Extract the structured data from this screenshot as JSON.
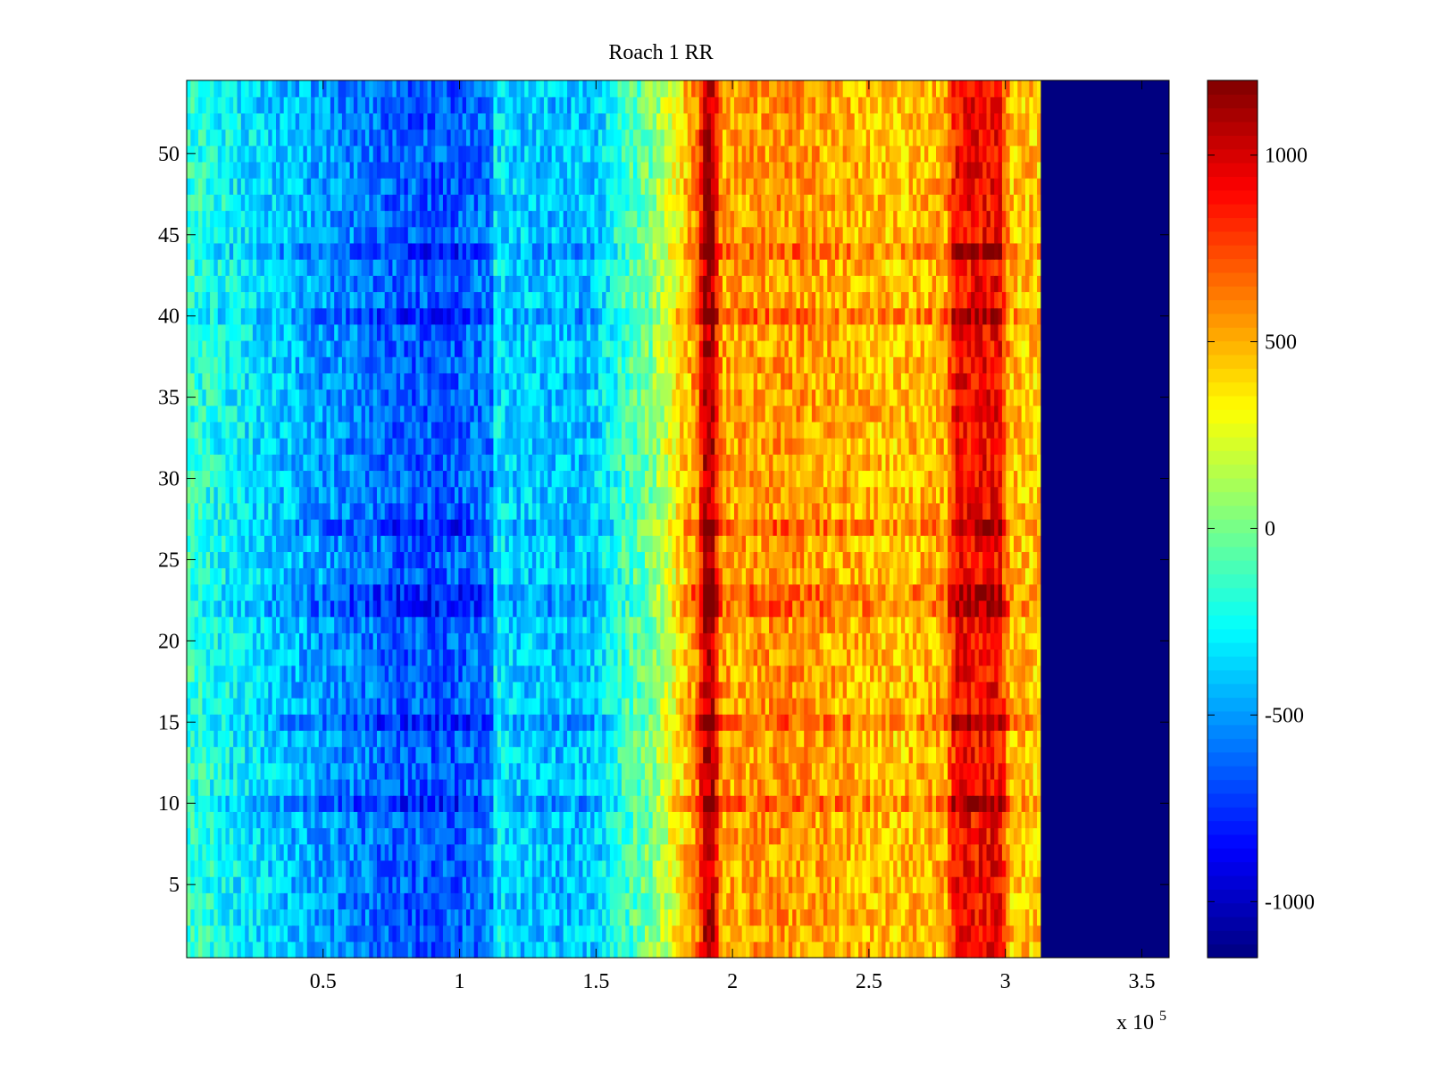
{
  "chart_data": {
    "type": "heatmap",
    "title": "Roach 1 RR",
    "xlabel": "",
    "ylabel": "",
    "x_multiplier_label": {
      "base": "x 10",
      "exponent": "5"
    },
    "xlim": [
      0,
      3.6
    ],
    "ylim": [
      0.5,
      54.5
    ],
    "x_ticks": [
      0.5,
      1,
      1.5,
      2,
      2.5,
      3,
      3.5
    ],
    "x_tick_labels": [
      "0.5",
      "1",
      "1.5",
      "2",
      "2.5",
      "3",
      "3.5"
    ],
    "y_ticks": [
      5,
      10,
      15,
      20,
      25,
      30,
      35,
      40,
      45,
      50
    ],
    "y_tick_labels": [
      "5",
      "10",
      "15",
      "20",
      "25",
      "30",
      "35",
      "40",
      "45",
      "50"
    ],
    "rows": 54,
    "data_x_end": 3.13,
    "colormap": "jet",
    "colorbar": {
      "clim": [
        -1150,
        1200
      ],
      "ticks": [
        -1000,
        -500,
        0,
        500,
        1000
      ],
      "tick_labels": [
        "-1000",
        "-500",
        "0",
        "500",
        "1000"
      ],
      "location": "right"
    },
    "value_profile": [
      {
        "x": 0.0,
        "v": -150
      },
      {
        "x": 0.2,
        "v": -300
      },
      {
        "x": 0.5,
        "v": -500
      },
      {
        "x": 0.8,
        "v": -640
      },
      {
        "x": 1.0,
        "v": -640
      },
      {
        "x": 1.12,
        "v": -560
      },
      {
        "x": 1.13,
        "v": -300
      },
      {
        "x": 1.2,
        "v": -380
      },
      {
        "x": 1.4,
        "v": -420
      },
      {
        "x": 1.5,
        "v": -380
      },
      {
        "x": 1.6,
        "v": -150
      },
      {
        "x": 1.7,
        "v": 0
      },
      {
        "x": 1.8,
        "v": 350
      },
      {
        "x": 1.87,
        "v": 600
      },
      {
        "x": 1.9,
        "v": 1080
      },
      {
        "x": 1.93,
        "v": 1080
      },
      {
        "x": 1.96,
        "v": 520
      },
      {
        "x": 2.2,
        "v": 560
      },
      {
        "x": 2.6,
        "v": 450
      },
      {
        "x": 2.78,
        "v": 520
      },
      {
        "x": 2.82,
        "v": 900
      },
      {
        "x": 2.98,
        "v": 900
      },
      {
        "x": 3.02,
        "v": 450
      },
      {
        "x": 3.13,
        "v": 450
      }
    ],
    "empty_region": {
      "x_from": 3.13,
      "x_to": 3.6,
      "value": -1150
    },
    "highlight_rows": [
      10,
      15,
      22,
      23,
      27,
      40,
      44
    ]
  }
}
